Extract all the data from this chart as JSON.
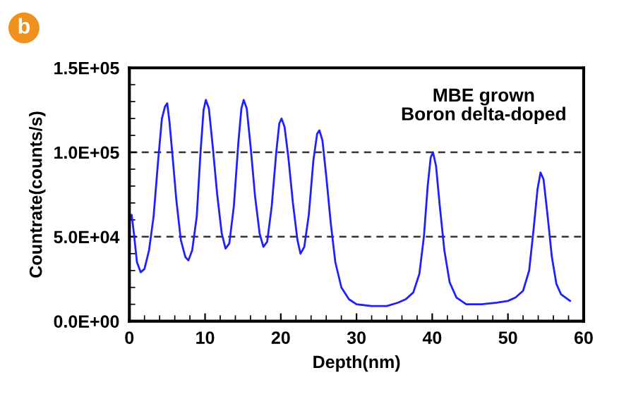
{
  "chart_data": {
    "type": "line",
    "xlabel": "Depth(nm)",
    "ylabel": "Countrate(counts/s)",
    "annotations": [
      "b",
      "MBE grown\nBoron delta-doped"
    ],
    "x": [
      0,
      0.05,
      0.3,
      0.6,
      1.0,
      1.5,
      2.0,
      2.6,
      3.2,
      3.8,
      4.3,
      4.7,
      5.0,
      5.3,
      5.7,
      6.2,
      6.8,
      7.4,
      7.8,
      8.3,
      8.9,
      9.4,
      9.8,
      10.1,
      10.5,
      11.0,
      11.6,
      12.2,
      12.7,
      13.2,
      13.8,
      14.4,
      14.8,
      15.1,
      15.5,
      16.0,
      16.6,
      17.2,
      17.7,
      18.2,
      18.8,
      19.4,
      19.8,
      20.1,
      20.5,
      21.0,
      21.6,
      22.2,
      22.6,
      23.1,
      23.7,
      24.3,
      24.8,
      25.1,
      25.5,
      26.0,
      26.6,
      27.2,
      28.0,
      29.0,
      30.0,
      32.0,
      34.0,
      35.5,
      36.5,
      37.5,
      38.3,
      38.9,
      39.4,
      39.8,
      40.1,
      40.5,
      41.0,
      41.6,
      42.3,
      43.2,
      44.5,
      46.5,
      48.5,
      50.0,
      51.0,
      52.0,
      52.8,
      53.4,
      53.9,
      54.3,
      54.7,
      55.2,
      55.8,
      56.4,
      57.0,
      57.6,
      58.2
    ],
    "series": [
      {
        "color": "#1f1fff",
        "values": [
          0,
          60000,
          63000,
          52000,
          35000,
          29000,
          31000,
          42000,
          62000,
          95000,
          120000,
          127000,
          129000,
          118000,
          98000,
          72000,
          48000,
          38000,
          36000,
          42000,
          62000,
          100000,
          125000,
          131000,
          126000,
          104000,
          75000,
          52000,
          43000,
          46000,
          68000,
          106000,
          126000,
          131000,
          126000,
          104000,
          74000,
          52000,
          44000,
          47000,
          68000,
          100000,
          117000,
          120000,
          115000,
          97000,
          70000,
          48000,
          40000,
          44000,
          63000,
          95000,
          111000,
          113000,
          107000,
          86000,
          58000,
          35000,
          20000,
          13000,
          10000,
          9000,
          9000,
          11000,
          13000,
          17000,
          28000,
          50000,
          80000,
          97000,
          100000,
          92000,
          68000,
          42000,
          23000,
          14000,
          10000,
          10000,
          11000,
          12000,
          14000,
          18000,
          30000,
          55000,
          78000,
          88000,
          84000,
          64000,
          38000,
          22000,
          16000,
          14000,
          12000
        ]
      }
    ],
    "xlim": [
      0,
      60
    ],
    "xticks": [
      0,
      10,
      20,
      30,
      40,
      50,
      60
    ],
    "ylim": [
      0,
      150000
    ],
    "yticks": [
      {
        "value": 0,
        "label": "0.0E+00"
      },
      {
        "value": 50000,
        "label": "5.0E+04"
      },
      {
        "value": 100000,
        "label": "1.0E+05"
      },
      {
        "value": 150000,
        "label": "1.5E+05"
      }
    ],
    "ref_lines": [
      {
        "axis": "y",
        "value": 50000,
        "label": null,
        "color": "#333333",
        "line_style": "dashed"
      },
      {
        "axis": "y",
        "value": 100000,
        "label": null,
        "color": "#333333",
        "line_style": "dashed"
      }
    ],
    "grid": false,
    "legend": false
  }
}
